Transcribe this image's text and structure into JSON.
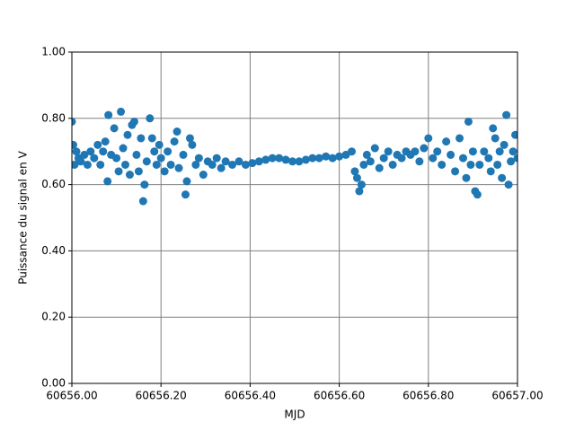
{
  "chart_data": {
    "type": "scatter",
    "x_label": "MJD",
    "y_label": "Puissance du signal en V",
    "color": "#1f77b4",
    "grid": true,
    "xlim": [
      60656.0,
      60657.0
    ],
    "xticks": [
      {
        "value": 60656.0,
        "label": "60656.00"
      },
      {
        "value": 60656.2,
        "label": "60656.20"
      },
      {
        "value": 60656.4,
        "label": "60656.40"
      },
      {
        "value": 60656.6,
        "label": "60656.60"
      },
      {
        "value": 60656.8,
        "label": "60656.80"
      },
      {
        "value": 60657.0,
        "label": "60657.00"
      }
    ],
    "ylim": [
      0,
      1
    ],
    "yticks": [
      {
        "value": 0,
        "label": "0.00"
      },
      {
        "value": 0.2,
        "label": "0.20"
      },
      {
        "value": 0.4,
        "label": "0.40"
      },
      {
        "value": 0.6,
        "label": "0.60"
      },
      {
        "value": 0.8,
        "label": "0.80"
      },
      {
        "value": 1,
        "label": "1.00"
      }
    ],
    "x": [
      60656.0,
      60656.003,
      60656.006,
      60656.01,
      60656.015,
      60656.02,
      60656.028,
      60656.035,
      60656.042,
      60656.05,
      60656.058,
      60656.064,
      60656.07,
      60656.075,
      60656.08,
      60656.082,
      60656.088,
      60656.095,
      60656.1,
      60656.105,
      60656.11,
      60656.115,
      60656.12,
      60656.125,
      60656.13,
      60656.135,
      60656.14,
      60656.145,
      60656.15,
      60656.155,
      60656.16,
      60656.163,
      60656.168,
      60656.175,
      60656.18,
      60656.185,
      60656.19,
      60656.196,
      60656.2,
      60656.208,
      60656.215,
      60656.222,
      60656.23,
      60656.236,
      60656.24,
      60656.25,
      60656.255,
      60656.258,
      60656.265,
      60656.27,
      60656.278,
      60656.285,
      60656.295,
      60656.305,
      60656.315,
      60656.325,
      60656.335,
      60656.345,
      60656.36,
      60656.375,
      60656.39,
      60656.405,
      60656.42,
      60656.435,
      60656.45,
      60656.465,
      60656.48,
      60656.495,
      60656.51,
      60656.525,
      60656.54,
      60656.555,
      60656.57,
      60656.585,
      60656.6,
      60656.615,
      60656.628,
      60656.635,
      60656.64,
      60656.645,
      60656.65,
      60656.655,
      60656.662,
      60656.67,
      60656.68,
      60656.69,
      60656.7,
      60656.71,
      60656.72,
      60656.73,
      60656.74,
      60656.75,
      60656.76,
      60656.77,
      60656.78,
      60656.79,
      60656.8,
      60656.81,
      60656.82,
      60656.83,
      60656.84,
      60656.85,
      60656.86,
      60656.87,
      60656.878,
      60656.885,
      60656.89,
      60656.895,
      60656.9,
      60656.905,
      60656.91,
      60656.915,
      60656.925,
      60656.935,
      60656.94,
      60656.945,
      60656.95,
      60656.955,
      60656.96,
      60656.965,
      60656.97,
      60656.975,
      60656.98,
      60656.985,
      60656.99,
      60656.995,
      60657.0
    ],
    "values": [
      0.79,
      0.72,
      0.66,
      0.7,
      0.68,
      0.67,
      0.69,
      0.66,
      0.7,
      0.68,
      0.72,
      0.66,
      0.7,
      0.73,
      0.61,
      0.81,
      0.69,
      0.77,
      0.68,
      0.64,
      0.82,
      0.71,
      0.66,
      0.75,
      0.63,
      0.78,
      0.79,
      0.69,
      0.64,
      0.74,
      0.55,
      0.6,
      0.67,
      0.8,
      0.74,
      0.7,
      0.66,
      0.72,
      0.68,
      0.64,
      0.7,
      0.66,
      0.73,
      0.76,
      0.65,
      0.69,
      0.57,
      0.61,
      0.74,
      0.72,
      0.66,
      0.68,
      0.63,
      0.67,
      0.66,
      0.68,
      0.65,
      0.67,
      0.66,
      0.67,
      0.66,
      0.665,
      0.67,
      0.675,
      0.68,
      0.68,
      0.675,
      0.67,
      0.67,
      0.675,
      0.68,
      0.68,
      0.685,
      0.68,
      0.685,
      0.69,
      0.7,
      0.64,
      0.62,
      0.58,
      0.6,
      0.66,
      0.69,
      0.67,
      0.71,
      0.65,
      0.68,
      0.7,
      0.66,
      0.69,
      0.68,
      0.7,
      0.69,
      0.7,
      0.67,
      0.71,
      0.74,
      0.68,
      0.7,
      0.66,
      0.73,
      0.69,
      0.64,
      0.74,
      0.68,
      0.62,
      0.79,
      0.66,
      0.7,
      0.58,
      0.57,
      0.66,
      0.7,
      0.68,
      0.64,
      0.77,
      0.74,
      0.66,
      0.7,
      0.62,
      0.72,
      0.81,
      0.6,
      0.67,
      0.7,
      0.75,
      0.68
    ]
  }
}
